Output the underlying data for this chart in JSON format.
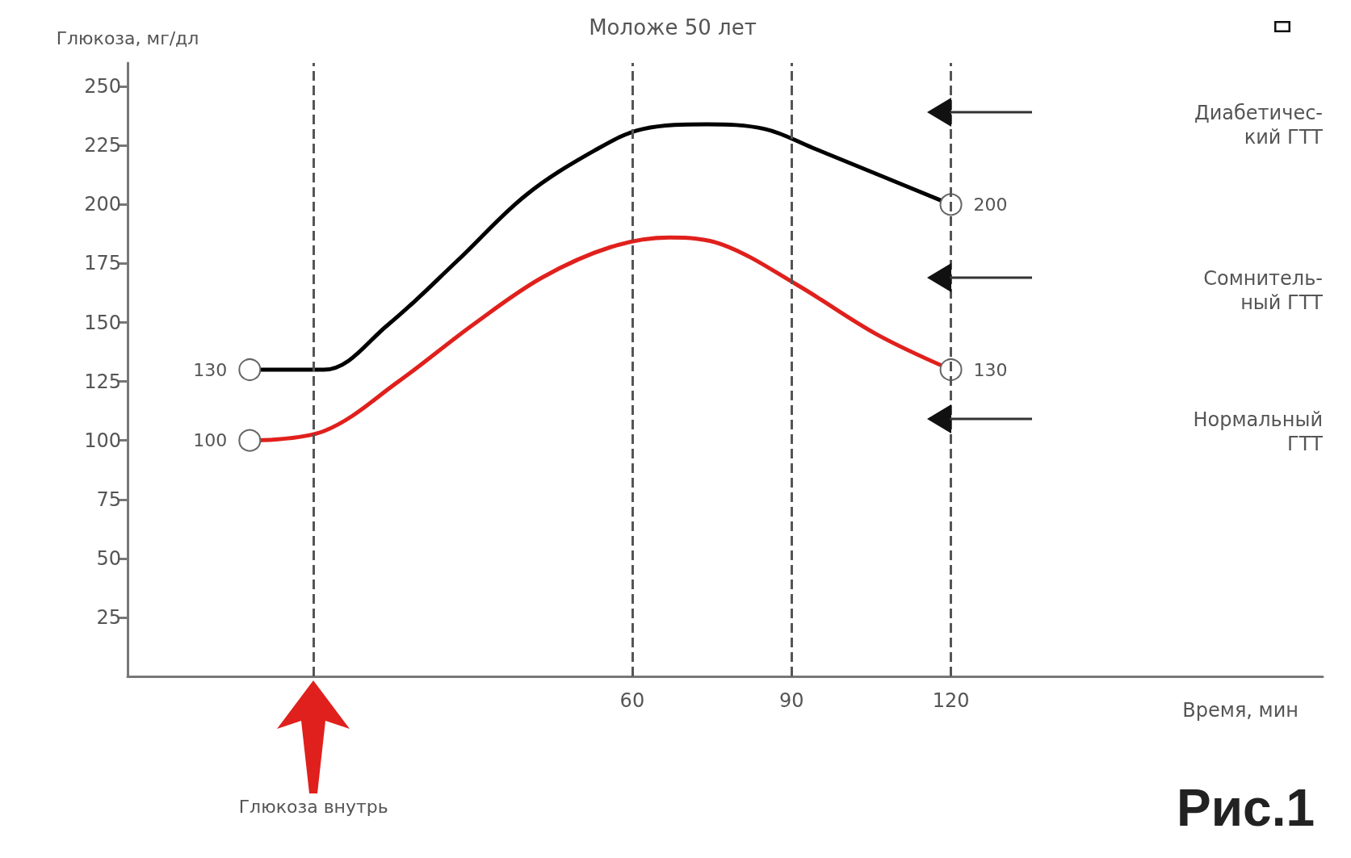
{
  "chart_data": {
    "type": "line",
    "title": "Моложе 50 лет",
    "xlabel": "Время, мин",
    "ylabel": "Глюкоза, мг/дл",
    "xlim": [
      -35,
      190
    ],
    "xticks": [
      60,
      90,
      120
    ],
    "ylim": [
      0,
      260
    ],
    "yticks": [
      25,
      50,
      75,
      100,
      125,
      150,
      175,
      200,
      225,
      250
    ],
    "grid": false,
    "series": [
      {
        "color": "#000000",
        "x": [
          -12,
          2,
          14,
          27,
          40,
          53,
          62,
          74,
          85,
          94,
          107,
          120
        ],
        "values": [
          130,
          130,
          149,
          176,
          204,
          223,
          232,
          234,
          232,
          224,
          212,
          200
        ],
        "value_labels": [
          "130",
          null,
          null,
          null,
          null,
          null,
          null,
          null,
          null,
          null,
          null,
          "200"
        ]
      },
      {
        "color": "#e0201c",
        "x": [
          -12,
          2,
          16,
          30,
          43,
          56,
          67,
          77,
          91,
          106,
          120
        ],
        "values": [
          100,
          104,
          125,
          149,
          169,
          182,
          186,
          183,
          166,
          145,
          130
        ],
        "value_labels": [
          "100",
          null,
          null,
          null,
          null,
          null,
          null,
          null,
          null,
          null,
          "130"
        ]
      }
    ],
    "ref_lines": [
      {
        "axis": "x",
        "value": 0,
        "label": "Глюкоза внутрь",
        "line_style": "dashed",
        "color": "#555555"
      },
      {
        "axis": "x",
        "value": 60,
        "line_style": "dashed",
        "color": "#555555"
      },
      {
        "axis": "x",
        "value": 90,
        "line_style": "dashed",
        "color": "#555555"
      },
      {
        "axis": "x",
        "value": 120,
        "line_style": "dashed",
        "color": "#555555"
      }
    ],
    "annotations": [
      "Диабетичес-\nкий ГТТ",
      "Сомнитель-\nный ГТТ",
      "Нормальный\nГТТ",
      "Рис.1"
    ]
  }
}
